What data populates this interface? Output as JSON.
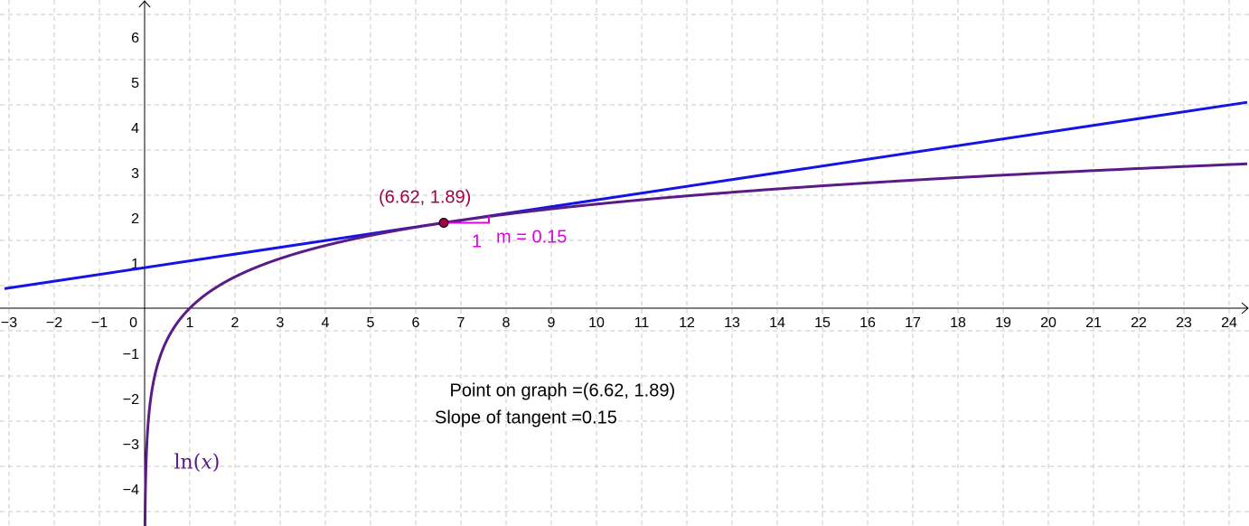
{
  "chart_data": {
    "type": "line",
    "title": "",
    "xlabel": "",
    "ylabel": "",
    "xlim": [
      -3.1,
      24.5
    ],
    "ylim": [
      -4.7,
      6.7
    ],
    "grid": true,
    "x_ticks": [
      -3,
      -2,
      -1,
      0,
      1,
      2,
      3,
      4,
      5,
      6,
      7,
      8,
      9,
      10,
      11,
      12,
      13,
      14,
      15,
      16,
      17,
      18,
      19,
      20,
      21,
      22,
      23,
      24
    ],
    "y_ticks": [
      -4,
      -3,
      -2,
      -1,
      1,
      2,
      3,
      4,
      5,
      6
    ],
    "x_tick_labels": [
      "−3",
      "−2",
      "−1",
      "0",
      "1",
      "2",
      "3",
      "4",
      "5",
      "6",
      "7",
      "8",
      "9",
      "10",
      "11",
      "12",
      "13",
      "14",
      "15",
      "16",
      "17",
      "18",
      "19",
      "20",
      "21",
      "22",
      "23",
      "24"
    ],
    "y_tick_labels": [
      "−4",
      "−3",
      "−2",
      "−1",
      "1",
      "2",
      "3",
      "4",
      "5",
      "6"
    ],
    "series": [
      {
        "name": "ln(x)",
        "function": "ln(x)",
        "color": "#5b1b86"
      },
      {
        "function": "tangent",
        "slope": 0.15,
        "point": [
          6.62,
          1.89
        ],
        "color": "#1414e6"
      }
    ],
    "point": {
      "x": 6.62,
      "y": 1.89,
      "label": "(6.62, 1.89)",
      "color": "#a00044"
    },
    "slope_triangle": {
      "run_label": "1",
      "slope_label": "m = 0.15",
      "color": "#e000e0"
    },
    "function_label": {
      "text": "ln",
      "arg": "x"
    },
    "annotations": {
      "point_on_graph": "Point on graph =(6.62, 1.89)",
      "slope_of_tangent": "Slope of tangent =0.15"
    }
  }
}
